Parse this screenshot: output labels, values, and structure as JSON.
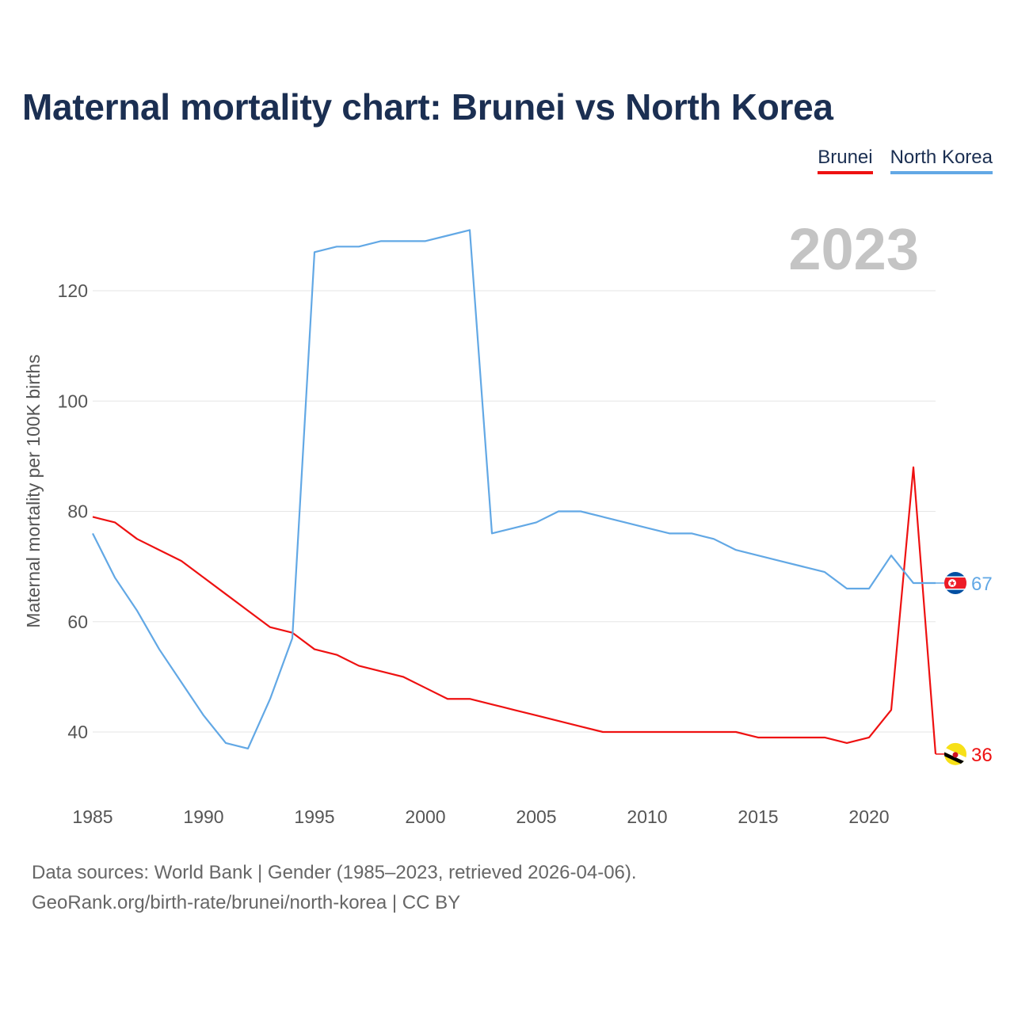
{
  "title": "Maternal mortality chart: Brunei vs North Korea",
  "year_label": "2023",
  "legend": {
    "brunei": "Brunei",
    "north_korea": "North Korea"
  },
  "footer": {
    "line1": "Data sources: World Bank | Gender (1985–2023, retrieved 2026-04-06).",
    "line2": "GeoRank.org/birth-rate/brunei/north-korea | CC BY"
  },
  "colors": {
    "brunei": "#ee1111",
    "north_korea": "#62a8e5",
    "grid": "#e6e6e6",
    "axis_text": "#555555"
  },
  "chart_data": {
    "type": "line",
    "title": "Maternal mortality chart: Brunei vs North Korea",
    "xlabel": "",
    "ylabel": "Maternal mortality per 100K births",
    "xlim": [
      1985,
      2023
    ],
    "ylim": [
      30,
      135
    ],
    "xticks": [
      1985,
      1990,
      1995,
      2000,
      2005,
      2010,
      2015,
      2020
    ],
    "yticks": [
      40,
      60,
      80,
      100,
      120
    ],
    "x": [
      1985,
      1986,
      1987,
      1988,
      1989,
      1990,
      1991,
      1992,
      1993,
      1994,
      1995,
      1996,
      1997,
      1998,
      1999,
      2000,
      2001,
      2002,
      2003,
      2004,
      2005,
      2006,
      2007,
      2008,
      2009,
      2010,
      2011,
      2012,
      2013,
      2014,
      2015,
      2016,
      2017,
      2018,
      2019,
      2020,
      2021,
      2022,
      2023
    ],
    "series": [
      {
        "name": "Brunei",
        "key": "brunei",
        "values": [
          79,
          78,
          75,
          73,
          71,
          68,
          65,
          62,
          59,
          58,
          55,
          54,
          52,
          51,
          50,
          48,
          46,
          46,
          45,
          44,
          43,
          42,
          41,
          40,
          40,
          40,
          40,
          40,
          40,
          40,
          39,
          39,
          39,
          39,
          38,
          39,
          44,
          88,
          36
        ],
        "end_label": "36"
      },
      {
        "name": "North Korea",
        "key": "north_korea",
        "values": [
          76,
          68,
          62,
          55,
          49,
          43,
          38,
          37,
          46,
          57,
          127,
          128,
          128,
          129,
          129,
          129,
          130,
          131,
          76,
          77,
          78,
          80,
          80,
          79,
          78,
          77,
          76,
          76,
          75,
          73,
          72,
          71,
          70,
          69,
          66,
          66,
          72,
          67,
          67
        ],
        "end_label": "67"
      }
    ]
  }
}
